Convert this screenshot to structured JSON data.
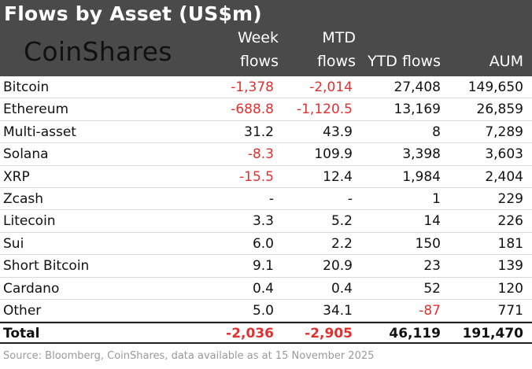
{
  "title": "Flows by Asset (US$m)",
  "logo": "CoinShares",
  "columns": {
    "week_line1": "Week",
    "week_line2": "flows",
    "mtd_line1": "MTD",
    "mtd_line2": "flows",
    "ytd": "YTD flows",
    "aum": "AUM"
  },
  "colors": {
    "header_bg": "#4a4a4a",
    "negative": "#e03030"
  },
  "rows": [
    {
      "name": "Bitcoin",
      "week": "-1,378",
      "mtd": "-2,014",
      "ytd": "27,408",
      "aum": "149,650"
    },
    {
      "name": "Ethereum",
      "week": "-688.8",
      "mtd": "-1,120.5",
      "ytd": "13,169",
      "aum": "26,859"
    },
    {
      "name": "Multi-asset",
      "week": "31.2",
      "mtd": "43.9",
      "ytd": "8",
      "aum": "7,289"
    },
    {
      "name": "Solana",
      "week": "-8.3",
      "mtd": "109.9",
      "ytd": "3,398",
      "aum": "3,603"
    },
    {
      "name": "XRP",
      "week": "-15.5",
      "mtd": "12.4",
      "ytd": "1,984",
      "aum": "2,404"
    },
    {
      "name": "Zcash",
      "week": "-",
      "mtd": "-",
      "ytd": "1",
      "aum": "229"
    },
    {
      "name": "Litecoin",
      "week": "3.3",
      "mtd": "5.2",
      "ytd": "14",
      "aum": "226"
    },
    {
      "name": "Sui",
      "week": "6.0",
      "mtd": "2.2",
      "ytd": "150",
      "aum": "181"
    },
    {
      "name": "Short Bitcoin",
      "week": "9.1",
      "mtd": "20.9",
      "ytd": "23",
      "aum": "139"
    },
    {
      "name": "Cardano",
      "week": "0.4",
      "mtd": "0.4",
      "ytd": "52",
      "aum": "120"
    },
    {
      "name": "Other",
      "week": "5.0",
      "mtd": "34.1",
      "ytd": "-87",
      "aum": "771"
    }
  ],
  "total": {
    "name": "Total",
    "week": "-2,036",
    "mtd": "-2,905",
    "ytd": "46,119",
    "aum": "191,470"
  },
  "source": "Source: Bloomberg, CoinShares, data available as at 15 November 2025"
}
